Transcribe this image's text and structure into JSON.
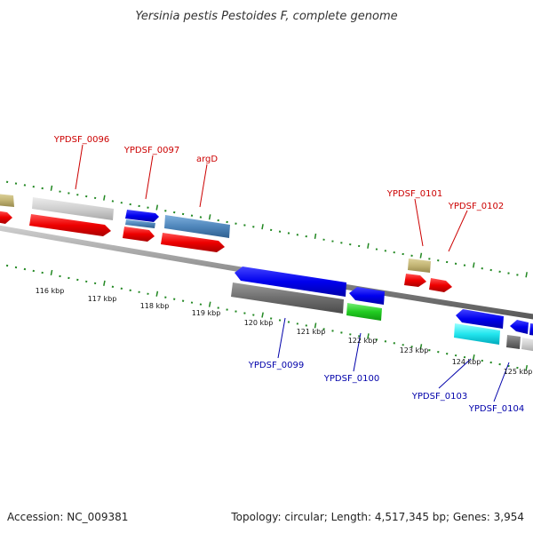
{
  "title": "Yersinia pestis Pestoides F, complete genome",
  "footer": {
    "accession": "Accession: NC_009381",
    "topology": "Topology: circular; Length: 4,517,345 bp; Genes: 3,954"
  },
  "colors": {
    "forward_label": "#cc0000",
    "reverse_label": "#0000aa",
    "tick": "#228822",
    "backbone": "#888888"
  },
  "tick_labels": [
    "116 kbp",
    "117 kbp",
    "118 kbp",
    "119 kbp",
    "120 kbp",
    "121 kbp",
    "122 kbp",
    "123 kbp",
    "124 kbp",
    "125 kbp"
  ],
  "gene_labels_forward": [
    "YPDSF_0096",
    "YPDSF_0097",
    "argD",
    "YPDSF_0101",
    "YPDSF_0102"
  ],
  "gene_labels_reverse": [
    "YPDSF_0099",
    "YPDSF_0100",
    "YPDSF_0103",
    "YPDSF_0104"
  ]
}
